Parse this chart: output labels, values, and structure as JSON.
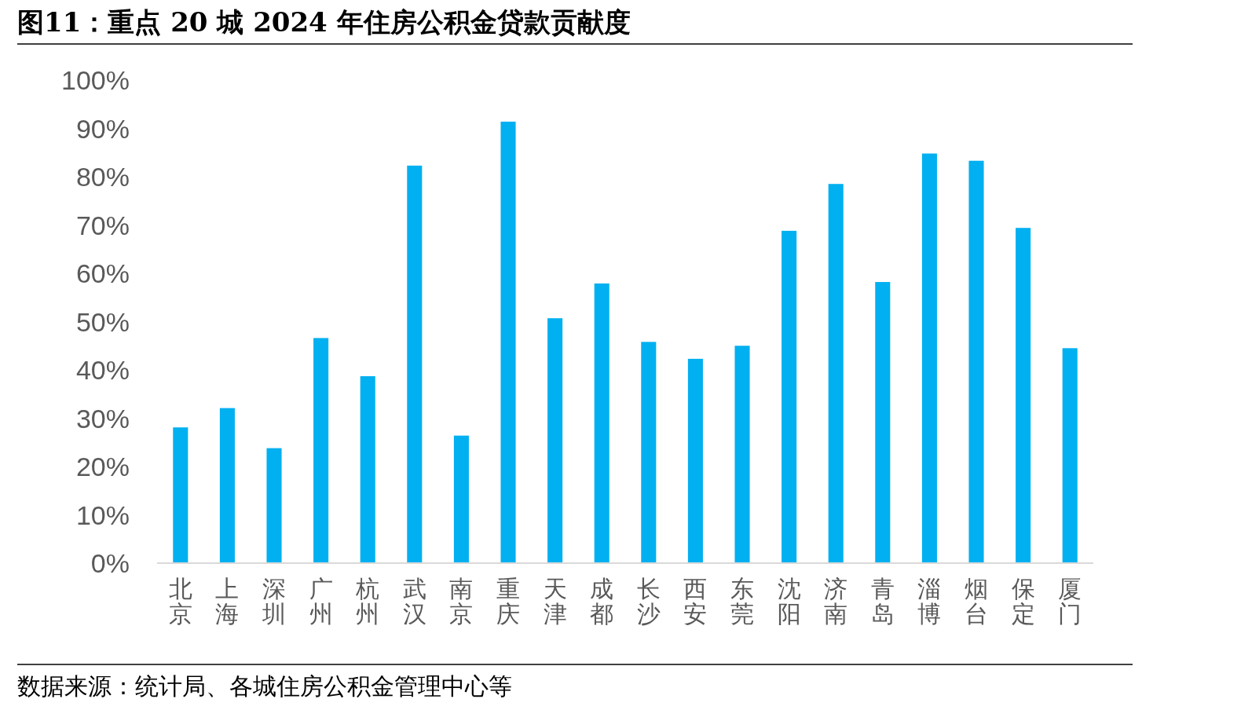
{
  "chart_data": {
    "type": "bar",
    "title": "图11：重点 20 城 2024 年住房公积金贷款贡献度",
    "categories": [
      "北京",
      "上海",
      "深圳",
      "广州",
      "杭州",
      "武汉",
      "南京",
      "重庆",
      "天津",
      "成都",
      "长沙",
      "西安",
      "东莞",
      "沈阳",
      "济南",
      "青岛",
      "淄博",
      "烟台",
      "保定",
      "厦门"
    ],
    "values": [
      28.1,
      32.1,
      23.8,
      46.6,
      38.7,
      82.3,
      26.4,
      91.4,
      50.7,
      57.9,
      45.8,
      42.3,
      45.0,
      68.8,
      78.5,
      58.2,
      84.8,
      83.3,
      69.4,
      44.5
    ],
    "color": "#00b0f0",
    "ylim": [
      0,
      100
    ],
    "yticks": [
      {
        "value": 0,
        "label": "0%"
      },
      {
        "value": 10,
        "label": "10%"
      },
      {
        "value": 20,
        "label": "20%"
      },
      {
        "value": 30,
        "label": "30%"
      },
      {
        "value": 40,
        "label": "40%"
      },
      {
        "value": 50,
        "label": "50%"
      },
      {
        "value": 60,
        "label": "60%"
      },
      {
        "value": 70,
        "label": "70%"
      },
      {
        "value": 80,
        "label": "80%"
      },
      {
        "value": 90,
        "label": "90%"
      },
      {
        "value": 100,
        "label": "100%"
      }
    ],
    "grid": false,
    "annotations": [
      "数据来源：统计局、各城住房公积金管理中心等"
    ]
  }
}
